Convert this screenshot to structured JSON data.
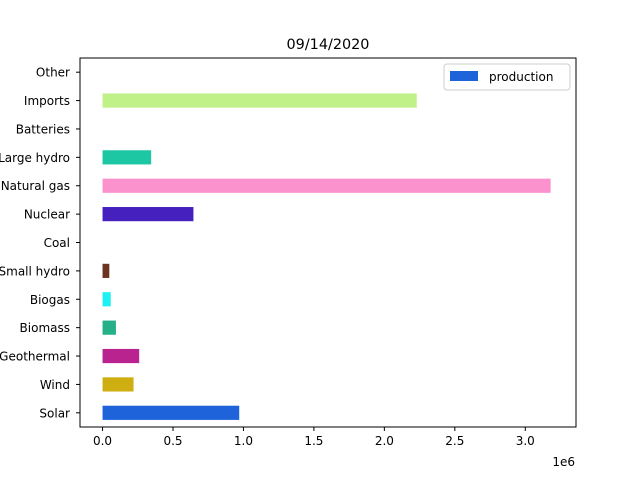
{
  "chart_data": {
    "type": "bar",
    "orientation": "horizontal",
    "title": "09/14/2020",
    "xlabel": "",
    "ylabel": "",
    "offset_text": "1e6",
    "xlim": [
      -160000,
      3360000
    ],
    "x_ticks": [
      0,
      500000,
      1000000,
      1500000,
      2000000,
      2500000,
      3000000
    ],
    "x_tick_labels": [
      "0.0",
      "0.5",
      "1.0",
      "1.5",
      "2.0",
      "2.5",
      "3.0"
    ],
    "categories": [
      "Solar",
      "Wind",
      "Geothermal",
      "Biomass",
      "Biogas",
      "Small hydro",
      "Coal",
      "Nuclear",
      "Natural gas",
      "Large hydro",
      "Batteries",
      "Imports",
      "Other"
    ],
    "series": [
      {
        "name": "production",
        "values": [
          970000,
          220000,
          260000,
          95000,
          58000,
          48000,
          0,
          645000,
          3180000,
          345000,
          0,
          2230000,
          0
        ],
        "colors": [
          "#1f63db",
          "#cfae12",
          "#b8238f",
          "#25b08a",
          "#1cf2f2",
          "#6b3420",
          "#808080",
          "#4520bf",
          "#fc92cd",
          "#1ec7a3",
          "#808080",
          "#c0f088",
          "#808080"
        ]
      }
    ],
    "legend": {
      "position": "top-right",
      "label": "production",
      "color": "#1f63db"
    },
    "grid": false
  }
}
